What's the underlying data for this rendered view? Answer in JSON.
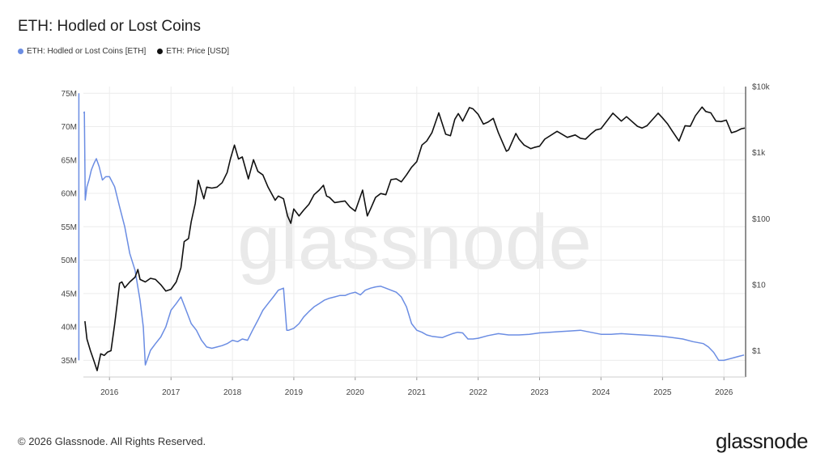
{
  "title": "ETH: Hodled or Lost Coins",
  "legend": [
    {
      "label": "ETH: Hodled or Lost Coins [ETH]",
      "color": "#6b8de3"
    },
    {
      "label": "ETH: Price [USD]",
      "color": "#111111"
    }
  ],
  "footer": "© 2026 Glassnode. All Rights Reserved.",
  "brand": "glassnode",
  "watermark": "glassnode",
  "chart_data": {
    "type": "line",
    "x_ticks": [
      "2016",
      "2017",
      "2018",
      "2019",
      "2020",
      "2021",
      "2022",
      "2023",
      "2024",
      "2025",
      "2026"
    ],
    "y_left_ticks": [
      "75M",
      "70M",
      "65M",
      "60M",
      "55M",
      "50M",
      "45M",
      "40M",
      "35M"
    ],
    "y_right_ticks": [
      "$10k",
      "$1k",
      "$100",
      "$10",
      "$1"
    ],
    "y_left_range": [
      32500000,
      76000000
    ],
    "y_right_range_log": [
      0.4,
      10000
    ],
    "right_axis_scale": "log",
    "grid": true,
    "legend_position": "top-left",
    "series": [
      {
        "name": "ETH: Hodled or Lost Coins [ETH]",
        "axis": "left",
        "color": "#6b8de3",
        "x": [
          "2015-08-01",
          "2015-08-05",
          "2015-08-10",
          "2015-08-20",
          "2015-09-01",
          "2015-09-15",
          "2015-10-01",
          "2015-10-15",
          "2015-11-01",
          "2015-11-20",
          "2015-12-10",
          "2016-01-01",
          "2016-02-01",
          "2016-03-01",
          "2016-04-01",
          "2016-05-01",
          "2016-06-01",
          "2016-07-01",
          "2016-07-20",
          "2016-08-01",
          "2016-09-01",
          "2016-10-01",
          "2016-11-01",
          "2016-12-01",
          "2017-01-01",
          "2017-02-01",
          "2017-03-01",
          "2017-04-01",
          "2017-05-01",
          "2017-06-01",
          "2017-07-01",
          "2017-08-01",
          "2017-09-01",
          "2017-10-01",
          "2017-11-01",
          "2017-12-01",
          "2018-01-01",
          "2018-02-01",
          "2018-03-01",
          "2018-04-01",
          "2018-05-01",
          "2018-06-01",
          "2018-07-01",
          "2018-08-01",
          "2018-09-01",
          "2018-10-01",
          "2018-11-01",
          "2018-11-20",
          "2018-12-01",
          "2019-01-01",
          "2019-02-01",
          "2019-03-01",
          "2019-04-01",
          "2019-05-01",
          "2019-06-01",
          "2019-07-01",
          "2019-08-01",
          "2019-09-01",
          "2019-10-01",
          "2019-11-01",
          "2019-12-01",
          "2020-01-01",
          "2020-02-01",
          "2020-03-01",
          "2020-04-01",
          "2020-05-01",
          "2020-06-01",
          "2020-07-01",
          "2020-08-01",
          "2020-09-01",
          "2020-10-01",
          "2020-11-01",
          "2020-12-01",
          "2021-01-01",
          "2021-02-01",
          "2021-03-01",
          "2021-04-01",
          "2021-05-01",
          "2021-06-01",
          "2021-07-01",
          "2021-08-01",
          "2021-09-01",
          "2021-10-01",
          "2021-11-01",
          "2021-12-01",
          "2022-01-01",
          "2022-03-01",
          "2022-05-01",
          "2022-07-01",
          "2022-09-01",
          "2022-11-01",
          "2023-01-01",
          "2023-03-01",
          "2023-05-01",
          "2023-07-01",
          "2023-09-01",
          "2023-11-01",
          "2024-01-01",
          "2024-03-01",
          "2024-05-01",
          "2024-07-01",
          "2024-09-01",
          "2024-11-01",
          "2025-01-01",
          "2025-03-01",
          "2025-05-01",
          "2025-07-01",
          "2025-09-01",
          "2025-10-01",
          "2025-11-01",
          "2025-12-01",
          "2026-01-01",
          "2026-02-01",
          "2026-03-01",
          "2026-04-01",
          "2026-05-01"
        ],
        "values": [
          72000000,
          72200000,
          59000000,
          61000000,
          62000000,
          63500000,
          64500000,
          65200000,
          64000000,
          62000000,
          62500000,
          62500000,
          61000000,
          58000000,
          55000000,
          51000000,
          48500000,
          44000000,
          40000000,
          34300000,
          36500000,
          37500000,
          38500000,
          40000000,
          42500000,
          43500000,
          44500000,
          42500000,
          40500000,
          39500000,
          38000000,
          37000000,
          36800000,
          37000000,
          37200000,
          37500000,
          38000000,
          37800000,
          38200000,
          38000000,
          39500000,
          41000000,
          42500000,
          43500000,
          44500000,
          45500000,
          45800000,
          39500000,
          39500000,
          39800000,
          40500000,
          41500000,
          42300000,
          43000000,
          43500000,
          44000000,
          44300000,
          44500000,
          44700000,
          44700000,
          45000000,
          45200000,
          44800000,
          45500000,
          45800000,
          46000000,
          46100000,
          45800000,
          45500000,
          45200000,
          44500000,
          43000000,
          40500000,
          39500000,
          39200000,
          38800000,
          38600000,
          38500000,
          38400000,
          38700000,
          39000000,
          39200000,
          39100000,
          38200000,
          38200000,
          38300000,
          38700000,
          39000000,
          38800000,
          38800000,
          38900000,
          39100000,
          39200000,
          39300000,
          39400000,
          39500000,
          39200000,
          38900000,
          38900000,
          39000000,
          38900000,
          38800000,
          38700000,
          38600000,
          38400000,
          38200000,
          37800000,
          37500000,
          37000000,
          36200000,
          35000000,
          35000000,
          35200000,
          35400000,
          35600000,
          35800000
        ],
        "start_spike": [
          75000000,
          35000000
        ]
      },
      {
        "name": "ETH: Price [USD]",
        "axis": "right",
        "color": "#111111",
        "x": [
          "2015-08-08",
          "2015-08-20",
          "2015-09-10",
          "2015-10-01",
          "2015-10-20",
          "2015-11-10",
          "2015-12-01",
          "2015-12-20",
          "2016-01-10",
          "2016-02-01",
          "2016-02-15",
          "2016-03-01",
          "2016-03-15",
          "2016-04-01",
          "2016-05-01",
          "2016-06-01",
          "2016-06-18",
          "2016-07-01",
          "2016-08-01",
          "2016-09-01",
          "2016-10-01",
          "2016-11-01",
          "2016-12-01",
          "2017-01-01",
          "2017-02-01",
          "2017-03-01",
          "2017-03-20",
          "2017-04-15",
          "2017-05-01",
          "2017-05-25",
          "2017-06-12",
          "2017-07-15",
          "2017-08-01",
          "2017-09-01",
          "2017-10-01",
          "2017-11-01",
          "2017-12-01",
          "2017-12-20",
          "2018-01-13",
          "2018-02-06",
          "2018-03-01",
          "2018-04-06",
          "2018-05-06",
          "2018-06-01",
          "2018-07-01",
          "2018-08-01",
          "2018-09-12",
          "2018-10-01",
          "2018-11-01",
          "2018-11-25",
          "2018-12-14",
          "2019-01-01",
          "2019-02-01",
          "2019-03-01",
          "2019-04-01",
          "2019-05-01",
          "2019-06-01",
          "2019-06-26",
          "2019-07-15",
          "2019-08-01",
          "2019-09-01",
          "2019-10-01",
          "2019-11-01",
          "2019-12-01",
          "2020-01-01",
          "2020-02-14",
          "2020-03-13",
          "2020-04-01",
          "2020-05-01",
          "2020-06-01",
          "2020-07-01",
          "2020-08-01",
          "2020-09-01",
          "2020-10-01",
          "2020-11-01",
          "2020-12-01",
          "2021-01-01",
          "2021-02-01",
          "2021-03-01",
          "2021-04-01",
          "2021-05-12",
          "2021-06-22",
          "2021-07-20",
          "2021-08-15",
          "2021-09-05",
          "2021-10-01",
          "2021-11-10",
          "2021-12-01",
          "2022-01-01",
          "2022-02-01",
          "2022-03-01",
          "2022-04-01",
          "2022-05-01",
          "2022-06-18",
          "2022-07-01",
          "2022-08-13",
          "2022-09-01",
          "2022-10-01",
          "2022-11-09",
          "2022-12-01",
          "2023-01-01",
          "2023-02-01",
          "2023-04-15",
          "2023-06-15",
          "2023-08-01",
          "2023-09-01",
          "2023-10-01",
          "2023-11-01",
          "2023-12-01",
          "2024-01-01",
          "2024-03-12",
          "2024-05-01",
          "2024-06-01",
          "2024-08-05",
          "2024-09-01",
          "2024-10-01",
          "2024-12-06",
          "2025-01-01",
          "2025-02-01",
          "2025-03-01",
          "2025-04-09",
          "2025-05-15",
          "2025-06-15",
          "2025-07-15",
          "2025-08-24",
          "2025-09-15",
          "2025-10-15",
          "2025-11-15",
          "2025-12-15",
          "2026-01-15",
          "2026-02-15",
          "2026-03-15",
          "2026-04-15",
          "2026-05-05"
        ],
        "values": [
          2.8,
          1.5,
          1.0,
          0.7,
          0.5,
          0.9,
          0.85,
          0.95,
          1.0,
          2.5,
          5.0,
          10.5,
          11.0,
          9.0,
          11.0,
          13.0,
          17.0,
          12.0,
          11.0,
          12.5,
          12.0,
          10.0,
          8.0,
          8.5,
          11.0,
          18.0,
          45.0,
          50.0,
          90.0,
          170.0,
          380.0,
          200.0,
          300.0,
          290.0,
          300.0,
          350.0,
          500.0,
          800.0,
          1300.0,
          800.0,
          860.0,
          400.0,
          780.0,
          520.0,
          460.0,
          300.0,
          190.0,
          220.0,
          200.0,
          110.0,
          85.0,
          140.0,
          110.0,
          135.0,
          165.0,
          230.0,
          270.0,
          320.0,
          220.0,
          210.0,
          175.0,
          180.0,
          185.0,
          150.0,
          130.0,
          270.0,
          110.0,
          140.0,
          210.0,
          240.0,
          230.0,
          390.0,
          400.0,
          360.0,
          460.0,
          600.0,
          730.0,
          1300.0,
          1500.0,
          2000.0,
          4000.0,
          1900.0,
          1800.0,
          3200.0,
          3900.0,
          3000.0,
          4800.0,
          4600.0,
          3800.0,
          2700.0,
          2900.0,
          3300.0,
          2000.0,
          1050.0,
          1100.0,
          1950.0,
          1600.0,
          1300.0,
          1150.0,
          1200.0,
          1250.0,
          1600.0,
          2100.0,
          1700.0,
          1850.0,
          1650.0,
          1600.0,
          1900.0,
          2200.0,
          2300.0,
          3950.0,
          3000.0,
          3500.0,
          2500.0,
          2350.0,
          2550.0,
          3950.0,
          3350.0,
          2700.0,
          2100.0,
          1500.0,
          2550.0,
          2500.0,
          3600.0,
          4900.0,
          4200.0,
          4000.0,
          3000.0,
          2950.0,
          3100.0,
          2000.0,
          2100.0,
          2300.0,
          2350.0
        ]
      }
    ]
  }
}
